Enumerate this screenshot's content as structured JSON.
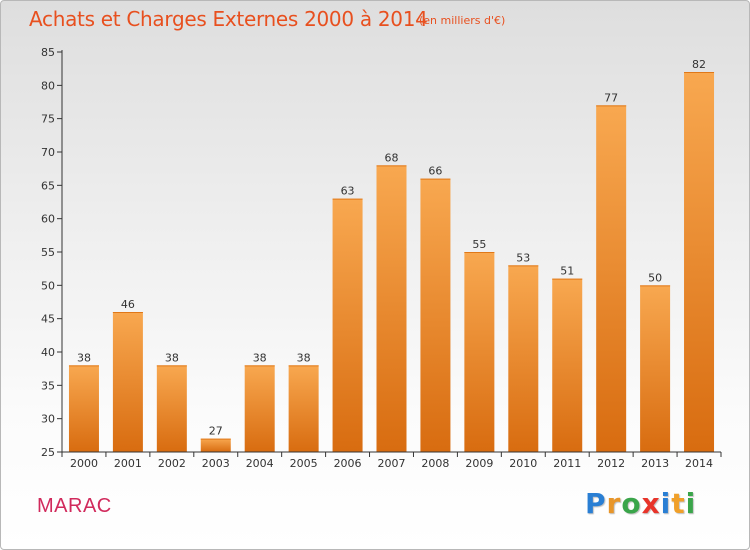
{
  "header": {
    "title": "Achats et Charges Externes 2000 à 2014",
    "subtitle": "(en milliers d'€)"
  },
  "footer": {
    "commune": "MARAC",
    "logo_letters": [
      "P",
      "r",
      "o",
      "x",
      "i",
      "t",
      "i"
    ],
    "logo_colors": [
      "#2a7fd4",
      "#e8962a",
      "#3aa54a",
      "#e8342a",
      "#2a7fd4",
      "#f0a02a",
      "#3aa54a"
    ]
  },
  "colors": {
    "title": "#e8501f",
    "commune": "#d12a5c",
    "bar_light": "#f8a850",
    "bar_dark": "#d86c10",
    "axis": "#333333",
    "grid": "#d4d4d4"
  },
  "chart_data": {
    "type": "bar",
    "categories": [
      "2000",
      "2001",
      "2002",
      "2003",
      "2004",
      "2005",
      "2006",
      "2007",
      "2008",
      "2009",
      "2010",
      "2011",
      "2012",
      "2013",
      "2014"
    ],
    "values": [
      38,
      46,
      38,
      27,
      38,
      38,
      63,
      68,
      66,
      55,
      53,
      51,
      77,
      50,
      82
    ],
    "ylim": [
      25,
      85
    ],
    "yticks": [
      25,
      30,
      35,
      40,
      45,
      50,
      55,
      60,
      65,
      70,
      75,
      80,
      85
    ],
    "grid": false,
    "xlabel": "",
    "ylabel": ""
  }
}
